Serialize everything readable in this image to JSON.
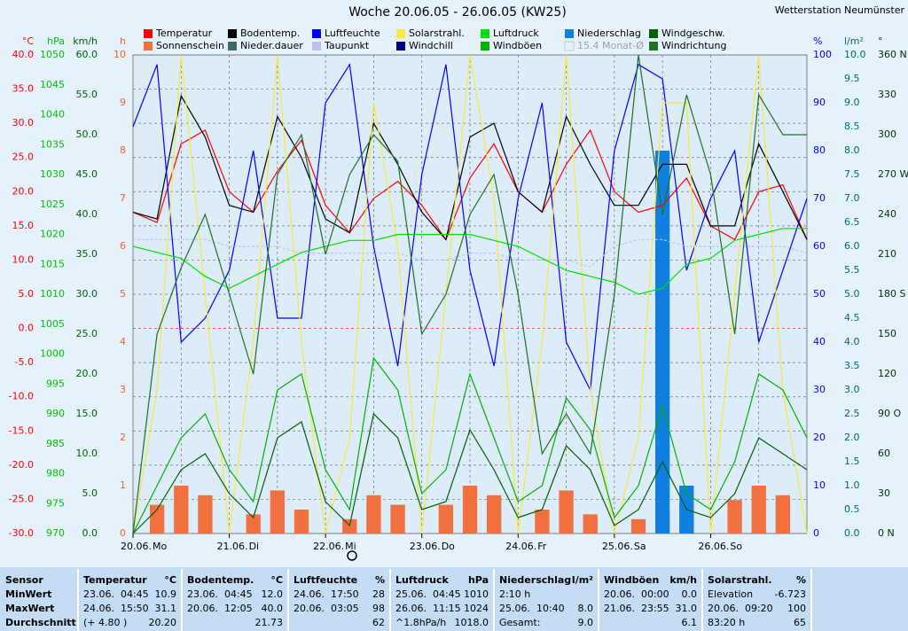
{
  "header": {
    "title": "Woche 20.06.05 - 26.06.05 (KW25)",
    "station": "Wetterstation Neumünster"
  },
  "chart_data": {
    "type": "line",
    "xticks": [
      "20.06.",
      "21.06.",
      "22.06.",
      "23.06.",
      "24.06.",
      "25.06.",
      "26.06."
    ],
    "weekdays": [
      "Mo",
      "Di",
      "Mi",
      "Do",
      "Fr",
      "Sa",
      "So"
    ],
    "axes": [
      {
        "unit": "°C",
        "color": "#ff0000",
        "lim": [
          -30,
          40
        ],
        "ticks": [
          {
            "value": -30,
            "label": "-30.0"
          },
          {
            "value": -25,
            "label": "-25.0"
          },
          {
            "value": -20,
            "label": "-20.0"
          },
          {
            "value": -15,
            "label": "-15.0"
          },
          {
            "value": -10,
            "label": "-10.0"
          },
          {
            "value": -5,
            "label": "-5.0"
          },
          {
            "value": 0,
            "label": "0.0"
          },
          {
            "value": 5,
            "label": "5.0"
          },
          {
            "value": 10,
            "label": "10.0"
          },
          {
            "value": 15,
            "label": "15.0"
          },
          {
            "value": 20,
            "label": "20.0"
          },
          {
            "value": 25,
            "label": "25.0"
          },
          {
            "value": 30,
            "label": "30.0"
          },
          {
            "value": 35,
            "label": "35.0"
          },
          {
            "value": 40,
            "label": "40.0"
          }
        ]
      },
      {
        "unit": "hPa",
        "color": "#00c000",
        "lim": [
          970,
          1050
        ],
        "ticks": [
          970,
          975,
          980,
          985,
          990,
          995,
          1000,
          1005,
          1010,
          1015,
          1020,
          1025,
          1030,
          1035,
          1040,
          1045,
          1050
        ]
      },
      {
        "unit": "km/h",
        "color": "#006000",
        "lim": [
          0,
          60
        ],
        "ticks": [
          {
            "value": 0,
            "label": "0.0"
          },
          {
            "value": 5,
            "label": "5.0"
          },
          {
            "value": 10,
            "label": "10.0"
          },
          {
            "value": 15,
            "label": "15.0"
          },
          {
            "value": 20,
            "label": "20.0"
          },
          {
            "value": 25,
            "label": "25.0"
          },
          {
            "value": 30,
            "label": "30.0"
          },
          {
            "value": 35,
            "label": "35.0"
          },
          {
            "value": 40,
            "label": "40.0"
          },
          {
            "value": 45,
            "label": "45.0"
          },
          {
            "value": 50,
            "label": "50.0"
          },
          {
            "value": 55,
            "label": "55.0"
          },
          {
            "value": 60,
            "label": "60.0"
          }
        ]
      },
      {
        "unit": "h",
        "color": "#f06030",
        "lim": [
          0,
          10
        ],
        "ticks": [
          0,
          1,
          2,
          3,
          4,
          5,
          6,
          7,
          8,
          9,
          10
        ]
      },
      {
        "unit": "%",
        "color": "#0000ff",
        "lim": [
          0,
          100
        ],
        "ticks": [
          0,
          10,
          20,
          30,
          40,
          50,
          60,
          70,
          80,
          90,
          100
        ]
      },
      {
        "unit": "l/m²",
        "color": "#006868",
        "lim": [
          0,
          10
        ],
        "ticks": [
          {
            "value": 0,
            "label": "0.0"
          },
          {
            "value": 0.5,
            "label": "0.5"
          },
          {
            "value": 1,
            "label": "1.0"
          },
          {
            "value": 1.5,
            "label": "1.5"
          },
          {
            "value": 2,
            "label": "2.0"
          },
          {
            "value": 2.5,
            "label": "2.5"
          },
          {
            "value": 3,
            "label": "3.0"
          },
          {
            "value": 3.5,
            "label": "3.5"
          },
          {
            "value": 4,
            "label": "4.0"
          },
          {
            "value": 4.5,
            "label": "4.5"
          },
          {
            "value": 5,
            "label": "5.0"
          },
          {
            "value": 5.5,
            "label": "5.5"
          },
          {
            "value": 6,
            "label": "6.0"
          },
          {
            "value": 6.5,
            "label": "6.5"
          },
          {
            "value": 7,
            "label": "7.0"
          },
          {
            "value": 7.5,
            "label": "7.5"
          },
          {
            "value": 8,
            "label": "8.0"
          },
          {
            "value": 8.5,
            "label": "8.5"
          },
          {
            "value": 9,
            "label": "9.0"
          },
          {
            "value": 9.5,
            "label": "9.5"
          },
          {
            "value": 10,
            "label": "10.0"
          }
        ]
      },
      {
        "unit": "°",
        "color": "#003000",
        "lim": [
          0,
          360
        ],
        "ticks": [
          {
            "value": 0,
            "label": "0 N"
          },
          30,
          60,
          {
            "value": 90,
            "label": "90 O"
          },
          120,
          150,
          {
            "value": 180,
            "label": "180 S"
          },
          210,
          240,
          {
            "value": 270,
            "label": "270 W"
          },
          300,
          330,
          {
            "value": 360,
            "label": "360 N"
          }
        ]
      }
    ],
    "series": [
      {
        "name": "Temperatur",
        "color": "#ff0000",
        "type": "line",
        "axis": "°C",
        "values": [
          17,
          15.5,
          27,
          29,
          20,
          17,
          23,
          27.5,
          18,
          14,
          19,
          21.5,
          18,
          13,
          22,
          27,
          20,
          17,
          24,
          29,
          20,
          17,
          18,
          22,
          15,
          13,
          20,
          21,
          13
        ]
      },
      {
        "name": "Sonnenschein",
        "color": "#f07040",
        "type": "bar",
        "axis": "h",
        "values": [
          0,
          0.6,
          1,
          0.8,
          0,
          0.4,
          0.9,
          0.5,
          0,
          0.3,
          0.8,
          0.6,
          0,
          0.6,
          1,
          0.8,
          0,
          0.5,
          0.9,
          0.4,
          0,
          0.3,
          0.5,
          0.6,
          0,
          0.7,
          1,
          0.8,
          0
        ]
      },
      {
        "name": "Bodentemp.",
        "color": "#000000",
        "type": "line",
        "axis": "°C",
        "values": [
          17,
          16,
          34,
          28,
          18,
          17,
          31,
          25,
          16,
          14,
          30,
          24,
          17,
          13,
          28,
          30,
          20,
          17,
          31,
          24,
          18,
          18,
          24,
          24,
          15,
          15,
          27,
          20,
          13
        ]
      },
      {
        "name": "Nieder.dauer",
        "color": "#406868"
      },
      {
        "name": "Luftfeuchte",
        "color": "#0000ff",
        "type": "line",
        "axis": "%",
        "values": [
          85,
          98,
          40,
          45,
          55,
          80,
          45,
          45,
          90,
          98,
          60,
          35,
          75,
          98,
          55,
          35,
          70,
          90,
          40,
          30,
          80,
          98,
          95,
          55,
          70,
          80,
          40,
          55,
          70
        ]
      },
      {
        "name": "Taupunkt",
        "color": "#c0c0f0",
        "type": "line",
        "axis": "°C",
        "values": [
          13,
          13,
          13,
          13,
          12,
          12,
          12,
          11,
          11,
          11,
          11,
          11,
          10,
          10,
          11,
          11,
          10,
          10,
          10,
          9,
          12,
          13,
          13,
          12,
          12,
          12,
          12,
          12,
          11
        ]
      },
      {
        "name": "Solarstrahl.",
        "color": "#f8e840",
        "type": "line",
        "axis": "%",
        "values": [
          0,
          30,
          100,
          50,
          0,
          40,
          100,
          40,
          0,
          20,
          90,
          60,
          0,
          50,
          100,
          70,
          0,
          40,
          100,
          30,
          0,
          20,
          90,
          90,
          0,
          50,
          100,
          30,
          0
        ]
      },
      {
        "name": "Windchill",
        "color": "#000080"
      },
      {
        "name": "Luftdruck",
        "color": "#00e000",
        "type": "line",
        "axis": "hPa",
        "values": [
          1018,
          1017,
          1016,
          1013,
          1011,
          1013,
          1015,
          1017,
          1018,
          1019,
          1019,
          1020,
          1020,
          1020,
          1020,
          1019,
          1018,
          1016,
          1014,
          1013,
          1012,
          1010,
          1011,
          1015,
          1016,
          1019,
          1020,
          1021,
          1021
        ]
      },
      {
        "name": "Windböen",
        "color": "#00b000",
        "type": "line",
        "axis": "km/h",
        "values": [
          0,
          6,
          12,
          15,
          8,
          4,
          18,
          20,
          8,
          3,
          22,
          18,
          5,
          8,
          20,
          12,
          4,
          6,
          17,
          13,
          2,
          6,
          16,
          5,
          3,
          9,
          20,
          18,
          12
        ]
      },
      {
        "name": "Niederschlag",
        "color": "#1080e0",
        "type": "bar",
        "axis": "l/m²",
        "values": [
          0,
          0,
          0,
          0,
          0,
          0,
          0,
          0,
          0,
          0,
          0,
          0,
          0,
          0,
          0,
          0,
          0,
          0,
          0,
          0,
          0,
          0,
          8,
          1,
          0,
          0,
          0,
          0,
          0
        ]
      },
      {
        "name": "15.4 Monat-Ø",
        "color": "#c8c8c8"
      },
      {
        "name": "Windgeschw.",
        "color": "#006000",
        "type": "line",
        "axis": "km/h",
        "values": [
          0,
          3,
          8,
          10,
          5,
          2,
          12,
          14,
          4,
          1,
          15,
          12,
          3,
          4,
          13,
          8,
          2,
          3,
          11,
          8,
          1,
          3,
          9,
          3,
          2,
          5,
          12,
          10,
          8
        ]
      },
      {
        "name": "Windrichtung",
        "color": "#207020",
        "type": "line",
        "axis": "°",
        "values": [
          0,
          150,
          200,
          240,
          180,
          120,
          270,
          300,
          210,
          270,
          300,
          280,
          150,
          180,
          240,
          270,
          180,
          60,
          90,
          60,
          180,
          360,
          240,
          330,
          270,
          150,
          330,
          300,
          300
        ]
      }
    ]
  },
  "table": {
    "labels": [
      "Sensor",
      "MinWert",
      "MaxWert",
      "Durchschnitt"
    ],
    "columns": [
      {
        "name": "Temperatur",
        "unit": "°C",
        "rows": [
          [
            "23.06.  04:45",
            "10.9"
          ],
          [
            "24.06.  15:50",
            "31.1"
          ],
          [
            "(+ 4.80 )",
            "20.20"
          ]
        ]
      },
      {
        "name": "Bodentemp.",
        "unit": "°C",
        "rows": [
          [
            "23.06.  04:45",
            "12.0"
          ],
          [
            "20.06.  12:05",
            "40.0"
          ],
          [
            "21.73"
          ]
        ]
      },
      {
        "name": "Luftfeuchte",
        "unit": "%",
        "rows": [
          [
            "24.06.  17:50",
            "28"
          ],
          [
            "20.06.  03:05",
            "98"
          ],
          [
            "62"
          ]
        ]
      },
      {
        "name": "Luftdruck",
        "unit": "hPa",
        "rows": [
          [
            "25.06.  04:45",
            "1010"
          ],
          [
            "26.06.  11:15",
            "1024"
          ],
          [
            "^1.8hPa/h",
            "1018.0"
          ]
        ]
      },
      {
        "name": "Niederschlag",
        "unit": "l/m²",
        "rows": [
          [
            "2:10 h"
          ],
          [
            "25.06.  10:40",
            "8.0"
          ],
          [
            "Gesamt:",
            "9.0"
          ]
        ]
      },
      {
        "name": "Windböen",
        "unit": "km/h",
        "rows": [
          [
            "20.06.  00:00",
            "0.0"
          ],
          [
            "21.06.  23:55",
            "31.0"
          ],
          [
            "6.1"
          ]
        ]
      },
      {
        "name": "Solarstrahl.",
        "unit": "%",
        "rows": [
          [
            "Elevation",
            "-6.723"
          ],
          [
            "20.06.  09:20",
            "100"
          ],
          [
            "83:20 h",
            "65"
          ]
        ]
      }
    ]
  }
}
